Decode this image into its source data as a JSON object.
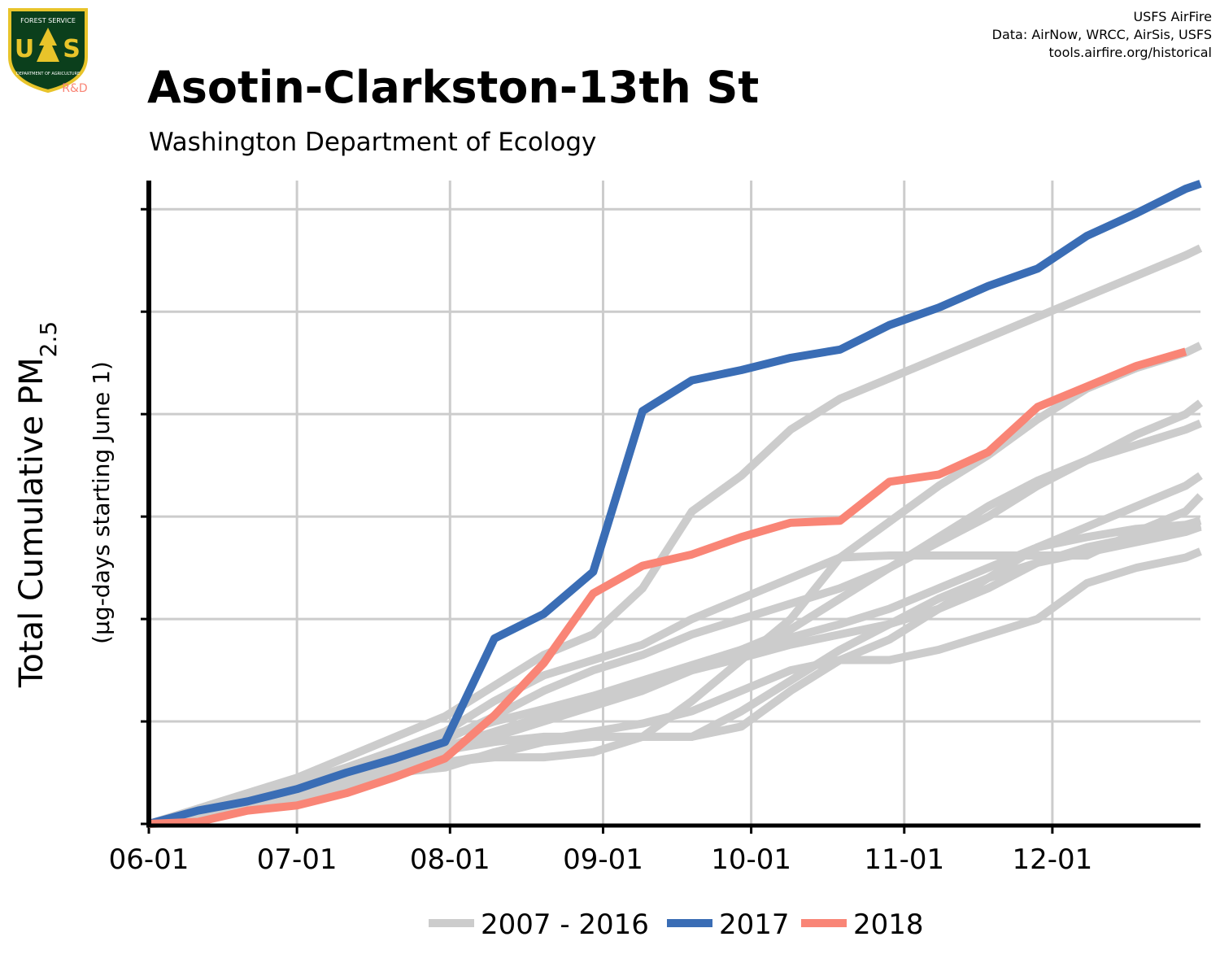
{
  "chart_data": {
    "type": "line",
    "title": "Asotin-Clarkston-13th St",
    "subtitle": "Washington Department of Ecology",
    "credits": [
      "USFS AirFire",
      "Data: AirNow, WRCC, AirSis, USFS",
      "tools.airfire.org/historical"
    ],
    "logo": {
      "top": "FOREST SERVICE",
      "left": "U",
      "right": "S",
      "bottom": "DEPARTMENT OF AGRICULTURE",
      "badge": "R&D"
    },
    "y_label": "Total Cumulative PM",
    "y_label_sub": "2.5",
    "y_label_note": "(µg-days starting June 1)",
    "x": [
      0,
      10,
      20,
      30,
      40,
      50,
      60,
      70,
      80,
      90,
      100,
      110,
      120,
      130,
      140,
      150,
      160,
      170,
      180,
      190,
      200,
      210,
      213
    ],
    "xlim": [
      0,
      213
    ],
    "xticks": [
      {
        "value": 0,
        "label": "06-01"
      },
      {
        "value": 30,
        "label": "07-01"
      },
      {
        "value": 61,
        "label": "08-01"
      },
      {
        "value": 92,
        "label": "09-01"
      },
      {
        "value": 122,
        "label": "10-01"
      },
      {
        "value": 153,
        "label": "11-01"
      },
      {
        "value": 183,
        "label": "12-01"
      }
    ],
    "ylim": [
      0,
      6.28
    ],
    "yticks": [
      0,
      1,
      2,
      3,
      4,
      5,
      6
    ],
    "grid": true,
    "series": [
      {
        "name": "2007 - 2016",
        "color": "#cccccc",
        "values": [
          [
            0,
            0.15,
            0.3,
            0.45,
            0.65,
            0.85,
            1.05,
            1.35,
            1.65,
            1.85,
            2.3,
            3.05,
            3.4,
            3.85,
            4.15,
            4.35,
            4.55,
            4.75,
            4.95,
            5.15,
            5.35,
            5.55,
            5.62
          ],
          [
            0,
            0.12,
            0.25,
            0.4,
            0.55,
            0.72,
            0.9,
            1.2,
            1.45,
            1.6,
            1.75,
            2.0,
            2.2,
            2.4,
            2.6,
            2.95,
            3.3,
            3.6,
            3.95,
            4.25,
            4.45,
            4.6,
            4.67
          ],
          [
            0,
            0.1,
            0.22,
            0.35,
            0.5,
            0.68,
            0.82,
            1.05,
            1.3,
            1.5,
            1.65,
            1.85,
            2.0,
            2.15,
            2.3,
            2.5,
            2.75,
            3.0,
            3.3,
            3.55,
            3.8,
            4.0,
            4.11
          ],
          [
            0,
            0.08,
            0.18,
            0.3,
            0.45,
            0.6,
            0.7,
            0.85,
            1.0,
            1.15,
            1.3,
            1.5,
            1.7,
            1.9,
            2.2,
            2.5,
            2.8,
            3.1,
            3.35,
            3.55,
            3.7,
            3.85,
            3.91
          ],
          [
            0,
            0.1,
            0.2,
            0.32,
            0.48,
            0.62,
            0.72,
            0.8,
            0.85,
            0.85,
            0.85,
            0.85,
            0.95,
            1.3,
            1.6,
            1.8,
            2.1,
            2.4,
            2.7,
            2.9,
            3.1,
            3.3,
            3.4
          ],
          [
            0,
            0.1,
            0.2,
            0.32,
            0.45,
            0.55,
            0.6,
            0.65,
            0.65,
            0.7,
            0.85,
            1.2,
            1.6,
            2.0,
            2.6,
            2.62,
            2.62,
            2.62,
            2.62,
            2.62,
            2.85,
            3.05,
            3.2
          ],
          [
            0,
            0.12,
            0.25,
            0.38,
            0.55,
            0.72,
            0.85,
            1.0,
            1.12,
            1.25,
            1.4,
            1.55,
            1.7,
            1.82,
            1.95,
            2.1,
            2.3,
            2.5,
            2.7,
            2.8,
            2.88,
            2.92,
            2.96
          ],
          [
            0,
            0.1,
            0.22,
            0.34,
            0.5,
            0.65,
            0.75,
            0.9,
            1.05,
            1.2,
            1.35,
            1.5,
            1.62,
            1.75,
            1.85,
            1.95,
            2.1,
            2.3,
            2.55,
            2.7,
            2.8,
            2.88,
            2.92
          ],
          [
            0,
            0.08,
            0.16,
            0.26,
            0.38,
            0.5,
            0.55,
            0.7,
            0.82,
            0.9,
            0.98,
            1.1,
            1.3,
            1.5,
            1.6,
            1.6,
            1.7,
            1.85,
            2.0,
            2.35,
            2.5,
            2.6,
            2.66
          ],
          [
            0,
            0.1,
            0.2,
            0.3,
            0.42,
            0.55,
            0.6,
            0.68,
            0.8,
            0.85,
            0.85,
            0.85,
            1.1,
            1.4,
            1.7,
            1.95,
            2.2,
            2.4,
            2.55,
            2.65,
            2.75,
            2.85,
            2.9
          ]
        ]
      },
      {
        "name": "2017",
        "color": "#3a6db5",
        "values": [
          0,
          0.13,
          0.22,
          0.34,
          0.5,
          0.64,
          0.8,
          1.81,
          2.05,
          2.46,
          4.03,
          4.33,
          4.43,
          4.55,
          4.63,
          4.87,
          5.04,
          5.25,
          5.42,
          5.74,
          5.96,
          6.2,
          6.25
        ]
      },
      {
        "name": "2018",
        "color": "#f98576",
        "values": [
          0,
          0.02,
          0.13,
          0.18,
          0.3,
          0.46,
          0.64,
          1.06,
          1.57,
          2.25,
          2.52,
          2.63,
          2.8,
          2.94,
          2.96,
          3.34,
          3.41,
          3.63,
          4.07,
          4.27,
          4.47,
          4.61,
          null
        ]
      }
    ]
  }
}
